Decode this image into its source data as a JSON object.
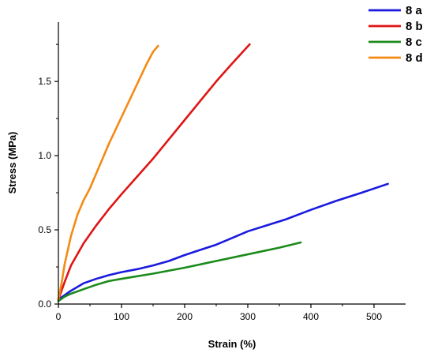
{
  "chart_data": {
    "type": "line",
    "title": "",
    "xlabel": "Strain (%)",
    "ylabel": "Stress (MPa)",
    "xlim": [
      0,
      550
    ],
    "ylim": [
      0,
      1.9
    ],
    "xticks": [
      "0",
      "100",
      "200",
      "300",
      "400",
      "500"
    ],
    "yticks": [
      "0.0",
      "0.5",
      "1.0",
      "1.5"
    ],
    "grid": false,
    "legend_position": "top-right",
    "series": [
      {
        "name": "8 a",
        "color": "#1a1adf",
        "x": [
          0,
          10,
          20,
          40,
          60,
          80,
          100,
          125,
          150,
          175,
          200,
          225,
          250,
          275,
          300,
          330,
          360,
          400,
          440,
          480,
          522
        ],
        "y": [
          0.03,
          0.06,
          0.09,
          0.14,
          0.17,
          0.195,
          0.215,
          0.235,
          0.26,
          0.29,
          0.33,
          0.365,
          0.4,
          0.445,
          0.49,
          0.53,
          0.57,
          0.635,
          0.695,
          0.75,
          0.81
        ]
      },
      {
        "name": "8 b",
        "color": "#e01414",
        "x": [
          0,
          10,
          20,
          40,
          60,
          80,
          100,
          125,
          150,
          175,
          200,
          225,
          250,
          275,
          303
        ],
        "y": [
          0.03,
          0.15,
          0.26,
          0.41,
          0.53,
          0.64,
          0.74,
          0.86,
          0.98,
          1.11,
          1.24,
          1.37,
          1.5,
          1.62,
          1.75
        ]
      },
      {
        "name": "8 c",
        "color": "#1b8a1b",
        "x": [
          0,
          10,
          20,
          40,
          60,
          80,
          100,
          150,
          200,
          250,
          300,
          350,
          384
        ],
        "y": [
          0.02,
          0.05,
          0.07,
          0.1,
          0.13,
          0.155,
          0.17,
          0.205,
          0.245,
          0.29,
          0.335,
          0.38,
          0.415
        ]
      },
      {
        "name": "8 d",
        "color": "#f48a14",
        "x": [
          0,
          5,
          10,
          20,
          30,
          40,
          50,
          60,
          70,
          80,
          90,
          100,
          110,
          120,
          130,
          140,
          150,
          158
        ],
        "y": [
          0.03,
          0.14,
          0.27,
          0.46,
          0.6,
          0.7,
          0.78,
          0.88,
          0.98,
          1.08,
          1.17,
          1.26,
          1.35,
          1.44,
          1.53,
          1.62,
          1.7,
          1.74
        ]
      }
    ]
  }
}
